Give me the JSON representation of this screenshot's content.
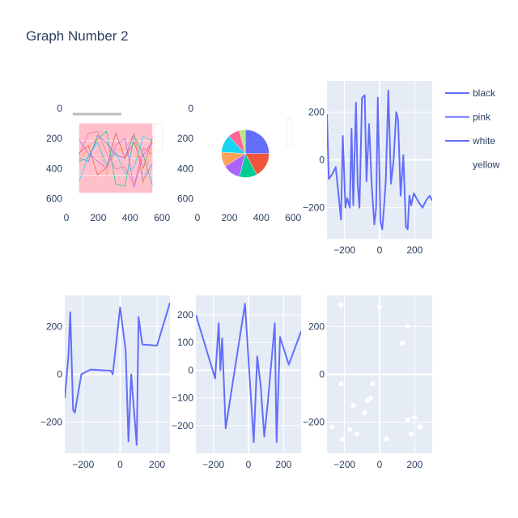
{
  "chart_data": {
    "title": "Graph Number 2",
    "legend": {
      "placement": "right",
      "entries": [
        {
          "label": "black",
          "color": "#636efa",
          "marker": "line"
        },
        {
          "label": "pink",
          "color": "#636efa",
          "marker": "line"
        },
        {
          "label": "white",
          "color": "#636efa",
          "marker": "line"
        },
        {
          "label": "yellow",
          "color": "#ffffff",
          "marker": "none"
        }
      ]
    },
    "colors": {
      "series": "#636efa",
      "scatter": "#ffffff",
      "plot_bg": "#e5ecf6",
      "grid": "#ffffff",
      "text": "#2a3f5f"
    },
    "subplots": [
      {
        "type": "image",
        "description_tag": "embedded-line-chart-image",
        "xlim": [
          -10,
          650
        ],
        "ylim": [
          650,
          -10
        ],
        "xticks": [
          0,
          200,
          400,
          600
        ],
        "yticks": [
          0,
          200,
          400,
          600
        ]
      },
      {
        "type": "image",
        "description_tag": "embedded-pie-chart-image",
        "xlim": [
          -10,
          650
        ],
        "ylim": [
          650,
          -10
        ],
        "xticks": [
          0,
          200,
          400,
          600
        ],
        "yticks": [
          0,
          200,
          400,
          600
        ]
      },
      {
        "type": "line",
        "xlim": [
          -300,
          300
        ],
        "ylim": [
          -330,
          330
        ],
        "xticks": [
          -200,
          0,
          200
        ],
        "yticks": [
          -200,
          0,
          200
        ],
        "x": [
          -300,
          -290,
          -270,
          -250,
          -235,
          -220,
          -210,
          -195,
          -185,
          -170,
          -160,
          -150,
          -135,
          -125,
          -115,
          -100,
          -85,
          -75,
          -60,
          -45,
          -30,
          -20,
          -10,
          5,
          15,
          25,
          35,
          50,
          65,
          80,
          95,
          105,
          120,
          135,
          150,
          160,
          170,
          180,
          195,
          210,
          225,
          245,
          265,
          285,
          300
        ],
        "y": [
          190,
          -80,
          -60,
          -30,
          -140,
          -250,
          100,
          -200,
          -160,
          -200,
          130,
          -190,
          240,
          -100,
          -200,
          260,
          270,
          -90,
          150,
          -110,
          -270,
          -200,
          260,
          -260,
          -290,
          -200,
          -90,
          290,
          -100,
          0,
          200,
          170,
          -150,
          20,
          -280,
          -290,
          -150,
          -190,
          -140,
          -160,
          -180,
          -200,
          -170,
          -150,
          -170
        ],
        "legend_series": [
          "black",
          "pink",
          "white"
        ]
      },
      {
        "type": "line",
        "xlim": [
          -300,
          270
        ],
        "ylim": [
          -330,
          330
        ],
        "xticks": [
          -200,
          0,
          200
        ],
        "yticks": [
          -200,
          0,
          200
        ],
        "x": [
          -300,
          -280,
          -270,
          -255,
          -245,
          -210,
          -160,
          -50,
          -40,
          0,
          30,
          45,
          60,
          90,
          100,
          120,
          200,
          270
        ],
        "y": [
          -100,
          80,
          260,
          -150,
          -160,
          0,
          20,
          15,
          0,
          280,
          100,
          -280,
          0,
          -295,
          240,
          125,
          120,
          300
        ]
      },
      {
        "type": "line",
        "xlim": [
          -300,
          300
        ],
        "ylim": [
          -300,
          270
        ],
        "xticks": [
          -200,
          0,
          200
        ],
        "yticks": [
          -200,
          -100,
          0,
          100,
          200
        ],
        "x": [
          -300,
          -190,
          -170,
          -160,
          -150,
          -130,
          -20,
          30,
          50,
          60,
          80,
          90,
          150,
          160,
          180,
          230,
          300
        ],
        "y": [
          200,
          -30,
          170,
          0,
          115,
          -210,
          240,
          -260,
          50,
          -60,
          -240,
          -120,
          170,
          -260,
          120,
          20,
          140
        ],
        "x_override": [
          -300,
          -190,
          -170,
          -160,
          -150,
          -130,
          -20,
          30,
          50,
          70,
          90,
          110,
          150,
          160,
          180,
          230,
          300
        ]
      },
      {
        "type": "scatter",
        "xlim": [
          -300,
          300
        ],
        "ylim": [
          -330,
          330
        ],
        "xticks": [
          -200,
          0,
          200
        ],
        "yticks": [
          -200,
          0,
          200
        ],
        "x": [
          -270,
          -220,
          -220,
          -210,
          -170,
          -150,
          -130,
          -85,
          -70,
          -50,
          -40,
          0,
          40,
          130,
          160,
          160,
          180,
          200,
          230
        ],
        "y": [
          -220,
          290,
          -40,
          -270,
          -230,
          -130,
          -250,
          -160,
          -110,
          -100,
          -40,
          280,
          -270,
          130,
          200,
          -190,
          -250,
          -180,
          -220
        ]
      }
    ]
  }
}
